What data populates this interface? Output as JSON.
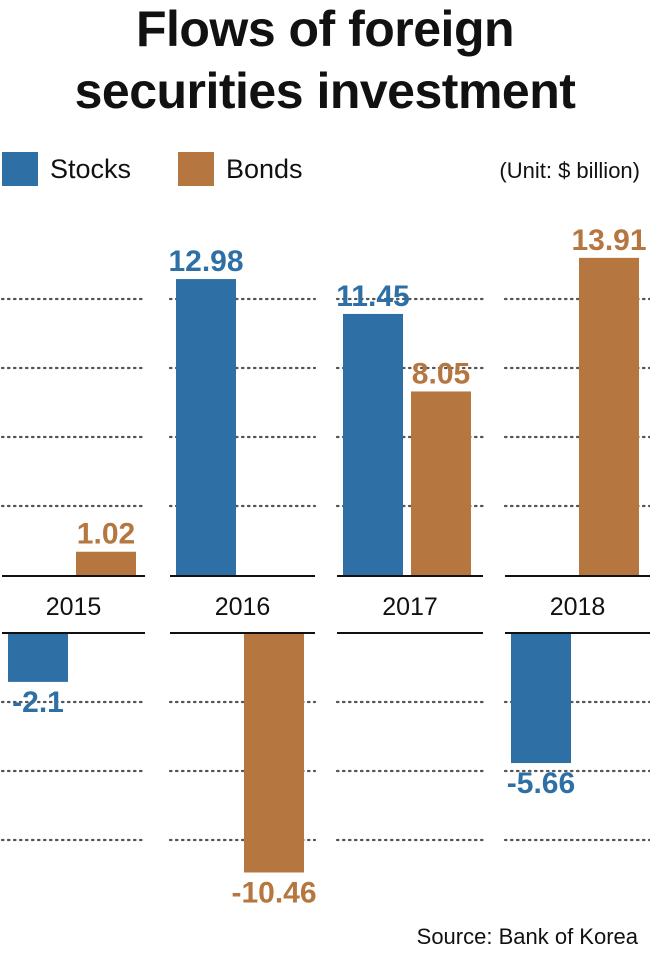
{
  "colors": {
    "stocks": "#2e70a5",
    "bonds": "#b5763f",
    "text": "#111111",
    "grid": "#555555"
  },
  "chart_data": {
    "type": "bar",
    "title": "Flows of foreign securities investment",
    "title_lines": [
      "Flows of foreign",
      "securities investment"
    ],
    "unit": "(Unit: $ billion)",
    "source": "Source: Bank of Korea",
    "categories": [
      "2015",
      "2016",
      "2017",
      "2018"
    ],
    "series": [
      {
        "name": "Stocks",
        "values": [
          -2.1,
          12.98,
          11.45,
          -5.66
        ],
        "labels": [
          "-2.1",
          "12.98",
          "11.45",
          "-5.66"
        ]
      },
      {
        "name": "Bonds",
        "values": [
          1.02,
          -10.46,
          8.05,
          13.91
        ],
        "labels": [
          "1.02",
          "-10.46",
          "8.05",
          "13.91"
        ]
      }
    ],
    "grid": true,
    "legend": "top-left"
  }
}
